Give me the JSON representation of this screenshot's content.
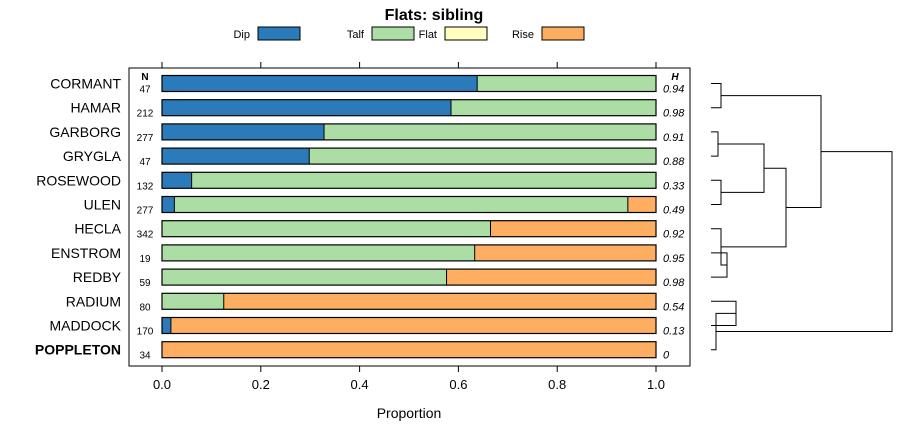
{
  "chart_data": {
    "type": "bar",
    "orientation": "horizontal",
    "stacked": true,
    "title": "Flats: sibling",
    "xlabel": "Proportion",
    "xlim": [
      0,
      1
    ],
    "xticks": [
      "0.0",
      "0.2",
      "0.4",
      "0.6",
      "0.8",
      "1.0"
    ],
    "xtick_values": [
      0,
      0.2,
      0.4,
      0.6,
      0.8,
      1.0
    ],
    "n_header": "N",
    "h_header": "H",
    "legend": [
      {
        "name": "Dip",
        "color": "#2b7bba"
      },
      {
        "name": "Talf",
        "color": "#abdda4"
      },
      {
        "name": "Flat",
        "color": "#ffffbf"
      },
      {
        "name": "Rise",
        "color": "#fdae61"
      }
    ],
    "categories": [
      "CORMANT",
      "HAMAR",
      "GARBORG",
      "GRYGLA",
      "ROSEWOOD",
      "ULEN",
      "HECLA",
      "ENSTROM",
      "REDBY",
      "RADIUM",
      "MADDOCK",
      "POPPLETON"
    ],
    "highlighted": "POPPLETON",
    "n": [
      "47",
      "212",
      "277",
      "47",
      "132",
      "277",
      "342",
      "19",
      "59",
      "80",
      "170",
      "34"
    ],
    "h": [
      "0.94",
      "0.98",
      "0.91",
      "0.88",
      "0.33",
      "0.49",
      "0.92",
      "0.95",
      "0.98",
      "0.54",
      "0.13",
      "0"
    ],
    "series": [
      {
        "name": "Dip",
        "values": [
          0.638,
          0.585,
          0.328,
          0.298,
          0.06,
          0.025,
          0.0,
          0.0,
          0.0,
          0.0,
          0.018,
          0.0
        ]
      },
      {
        "name": "Talf",
        "values": [
          0.362,
          0.415,
          0.672,
          0.702,
          0.94,
          0.918,
          0.665,
          0.633,
          0.576,
          0.125,
          0.0,
          0.0
        ]
      },
      {
        "name": "Flat",
        "values": [
          0,
          0,
          0,
          0,
          0,
          0,
          0,
          0,
          0,
          0,
          0,
          0
        ]
      },
      {
        "name": "Rise",
        "values": [
          0.0,
          0.0,
          0.0,
          0.0,
          0.0,
          0.057,
          0.335,
          0.367,
          0.424,
          0.875,
          0.982,
          1.0
        ]
      }
    ],
    "dendrogram": [
      {
        "a": "CORMANT",
        "b": "HAMAR"
      },
      {
        "a": "GARBORG",
        "b": "GRYGLA"
      },
      {
        "a": "ROSEWOOD",
        "b": "ULEN"
      },
      {
        "a": "ENSTROM",
        "b": "REDBY"
      },
      {
        "a": "HECLA",
        "b": "ENSTROM+REDBY"
      },
      {
        "a": "RADIUM",
        "b": "MADDOCK"
      },
      {
        "a": "MADDOCK+RADIUM",
        "b": "POPPLETON"
      }
    ]
  }
}
